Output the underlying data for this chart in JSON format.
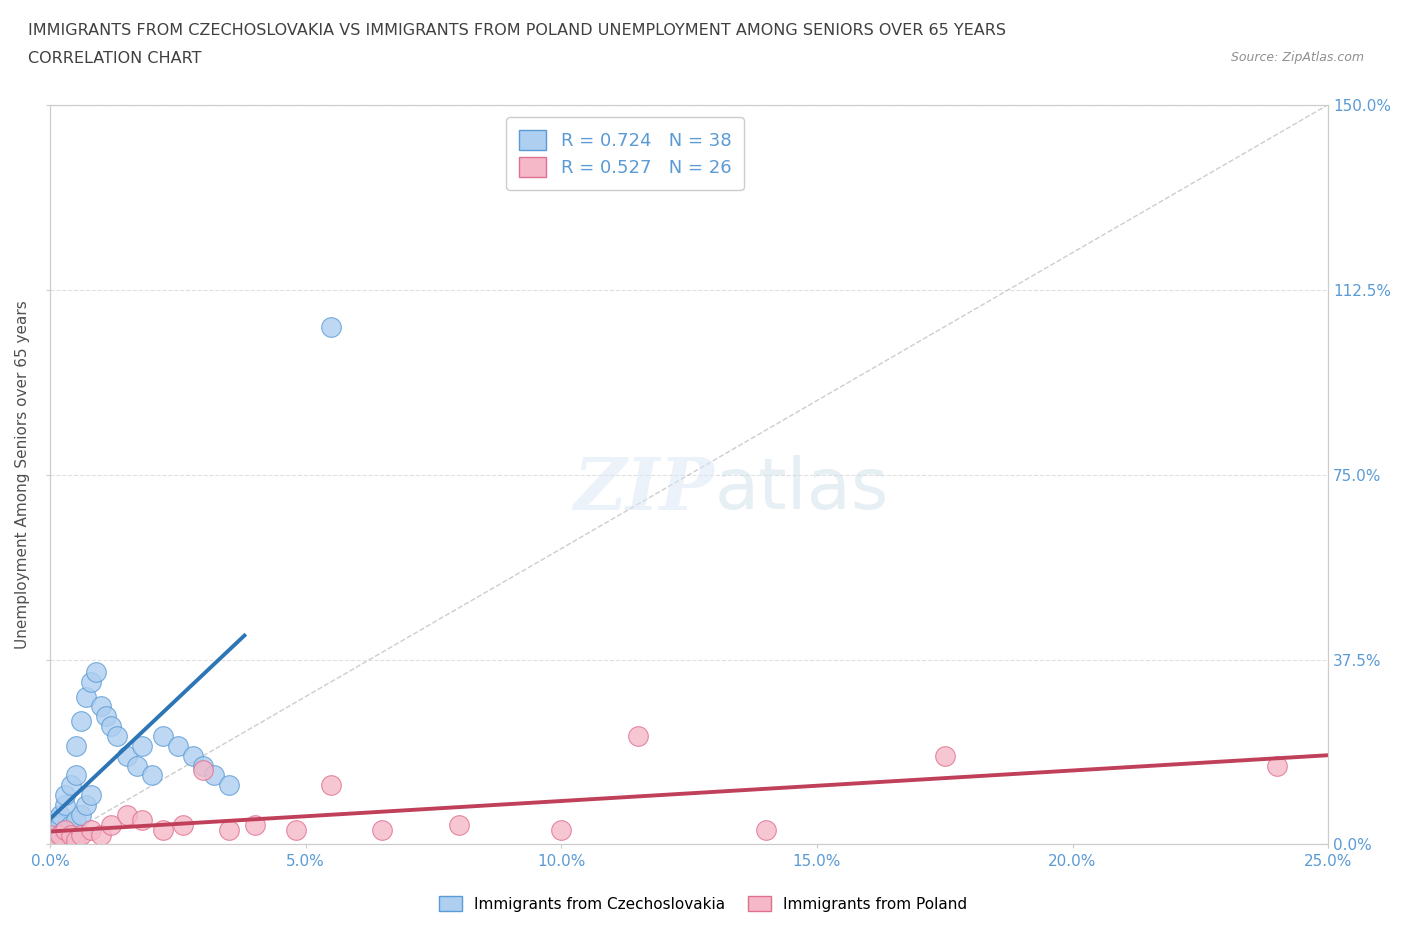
{
  "title_line1": "IMMIGRANTS FROM CZECHOSLOVAKIA VS IMMIGRANTS FROM POLAND UNEMPLOYMENT AMONG SENIORS OVER 65 YEARS",
  "title_line2": "CORRELATION CHART",
  "source": "Source: ZipAtlas.com",
  "ylabel": "Unemployment Among Seniors over 65 years",
  "r_czech": 0.724,
  "n_czech": 38,
  "r_poland": 0.527,
  "n_poland": 26,
  "czech_color": "#aecff0",
  "czech_edge_color": "#5b9bd5",
  "czech_line_color": "#2e75b6",
  "poland_color": "#f4b8c8",
  "poland_edge_color": "#e07090",
  "poland_line_color": "#c0405a",
  "ref_line_color": "#c8c8c8",
  "legend_label_czech": "Immigrants from Czechoslovakia",
  "legend_label_poland": "Immigrants from Poland",
  "background_color": "#ffffff",
  "grid_color": "#e0e0e0",
  "title_color": "#404040",
  "axis_color": "#5b9bd5",
  "xmin": 0.0,
  "xmax": 0.25,
  "ymin": 0.0,
  "ymax": 1.5,
  "czech_x": [
    0.0,
    0.0,
    0.001,
    0.001,
    0.001,
    0.002,
    0.002,
    0.002,
    0.003,
    0.003,
    0.003,
    0.004,
    0.004,
    0.005,
    0.005,
    0.005,
    0.006,
    0.006,
    0.007,
    0.007,
    0.008,
    0.008,
    0.009,
    0.01,
    0.011,
    0.012,
    0.013,
    0.015,
    0.017,
    0.018,
    0.02,
    0.022,
    0.025,
    0.028,
    0.03,
    0.032,
    0.035,
    0.055
  ],
  "czech_y": [
    0.02,
    0.01,
    0.03,
    0.05,
    0.02,
    0.04,
    0.06,
    0.02,
    0.08,
    0.1,
    0.03,
    0.12,
    0.04,
    0.14,
    0.2,
    0.05,
    0.25,
    0.06,
    0.3,
    0.08,
    0.33,
    0.1,
    0.35,
    0.28,
    0.26,
    0.24,
    0.22,
    0.18,
    0.16,
    0.2,
    0.14,
    0.22,
    0.2,
    0.18,
    0.16,
    0.14,
    0.12,
    1.05
  ],
  "poland_x": [
    0.0,
    0.001,
    0.002,
    0.003,
    0.004,
    0.005,
    0.006,
    0.008,
    0.01,
    0.012,
    0.015,
    0.018,
    0.022,
    0.026,
    0.03,
    0.035,
    0.04,
    0.048,
    0.055,
    0.065,
    0.08,
    0.1,
    0.115,
    0.14,
    0.175,
    0.24
  ],
  "poland_y": [
    0.02,
    0.01,
    0.02,
    0.03,
    0.02,
    0.01,
    0.02,
    0.03,
    0.02,
    0.04,
    0.06,
    0.05,
    0.03,
    0.04,
    0.15,
    0.03,
    0.04,
    0.03,
    0.12,
    0.03,
    0.04,
    0.03,
    0.22,
    0.03,
    0.18,
    0.16
  ]
}
